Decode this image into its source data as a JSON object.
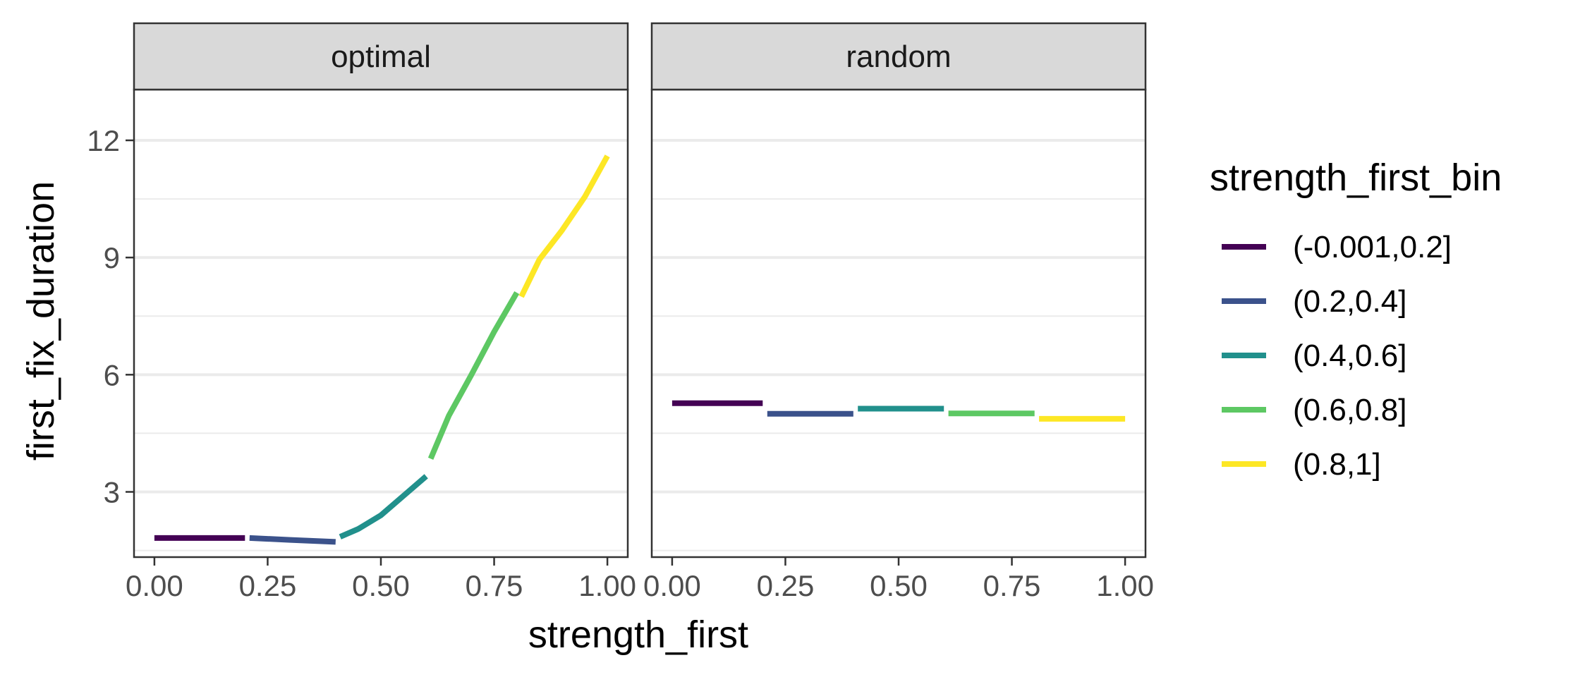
{
  "chart_data": {
    "type": "line",
    "xlabel": "strength_first",
    "ylabel": "first_fix_duration",
    "xlim": [
      -0.045,
      1.045
    ],
    "ylim": [
      1.33,
      13.3
    ],
    "x_ticks": [
      0,
      0.25,
      0.5,
      0.75,
      1
    ],
    "x_tick_labels": [
      "0.00",
      "0.25",
      "0.50",
      "0.75",
      "1.00"
    ],
    "y_ticks": [
      3,
      6,
      9,
      12
    ],
    "y_tick_labels": [
      "3",
      "6",
      "9",
      "12"
    ],
    "y_minor_ticks": [
      1.5,
      4.5,
      7.5,
      10.5
    ],
    "grid": "horizontal",
    "legend": {
      "title": "strength_first_bin",
      "position": "right",
      "entries": [
        {
          "label": "(-0.001,0.2]",
          "color": "#440154"
        },
        {
          "label": "(0.2,0.4]",
          "color": "#3B528B"
        },
        {
          "label": "(0.4,0.6]",
          "color": "#21908C"
        },
        {
          "label": "(0.6,0.8]",
          "color": "#5DC863"
        },
        {
          "label": "(0.8,1]",
          "color": "#FDE725"
        }
      ]
    },
    "panels": [
      {
        "strip": "optimal",
        "series": [
          {
            "bin": 0,
            "points": [
              [
                0.0,
                1.82
              ],
              [
                0.1,
                1.82
              ],
              [
                0.2,
                1.82
              ]
            ]
          },
          {
            "bin": 1,
            "points": [
              [
                0.21,
                1.82
              ],
              [
                0.3,
                1.77
              ],
              [
                0.4,
                1.72
              ]
            ]
          },
          {
            "bin": 2,
            "points": [
              [
                0.41,
                1.85
              ],
              [
                0.45,
                2.05
              ],
              [
                0.5,
                2.4
              ],
              [
                0.55,
                2.9
              ],
              [
                0.6,
                3.4
              ]
            ]
          },
          {
            "bin": 3,
            "points": [
              [
                0.61,
                3.85
              ],
              [
                0.65,
                4.95
              ],
              [
                0.7,
                6.0
              ],
              [
                0.75,
                7.1
              ],
              [
                0.8,
                8.1
              ]
            ]
          },
          {
            "bin": 4,
            "points": [
              [
                0.81,
                8.0
              ],
              [
                0.85,
                8.95
              ],
              [
                0.9,
                9.7
              ],
              [
                0.95,
                10.55
              ],
              [
                1.0,
                11.6
              ]
            ]
          }
        ]
      },
      {
        "strip": "random",
        "series": [
          {
            "bin": 0,
            "points": [
              [
                0.0,
                5.27
              ],
              [
                0.2,
                5.27
              ]
            ]
          },
          {
            "bin": 1,
            "points": [
              [
                0.21,
                5.0
              ],
              [
                0.4,
                5.0
              ]
            ]
          },
          {
            "bin": 2,
            "points": [
              [
                0.41,
                5.13
              ],
              [
                0.6,
                5.13
              ]
            ]
          },
          {
            "bin": 3,
            "points": [
              [
                0.61,
                5.01
              ],
              [
                0.8,
                5.01
              ]
            ]
          },
          {
            "bin": 4,
            "points": [
              [
                0.81,
                4.87
              ],
              [
                1.0,
                4.87
              ]
            ]
          }
        ]
      }
    ]
  }
}
